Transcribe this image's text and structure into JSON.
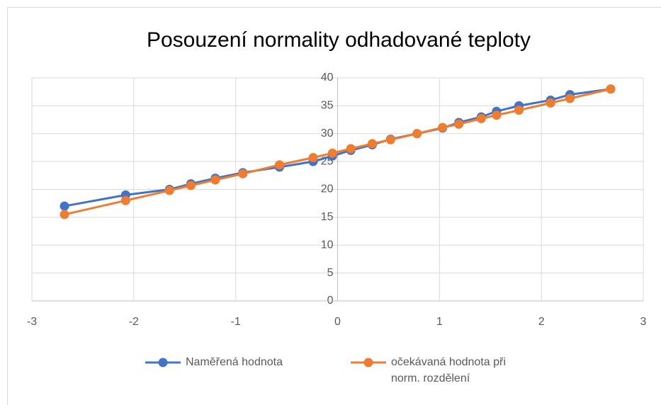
{
  "chart_data": {
    "type": "line",
    "title": "Posouzení normality odhadované teploty",
    "x": [
      -2.68,
      -2.08,
      -1.65,
      -1.44,
      -1.2,
      -0.93,
      -0.57,
      -0.24,
      -0.05,
      0.13,
      0.34,
      0.52,
      0.78,
      1.03,
      1.19,
      1.41,
      1.56,
      1.78,
      2.09,
      2.28,
      2.68
    ],
    "series": [
      {
        "name": "Naměřená hodnota",
        "color": "#4472c4",
        "values": [
          17,
          19,
          20,
          21,
          22,
          23,
          24,
          25,
          26,
          27,
          28,
          29,
          30,
          31,
          32,
          33,
          34,
          35,
          36,
          37,
          38
        ]
      },
      {
        "name": "očekávaná hodnota při norm. rozdělení",
        "color": "#ed7d31",
        "values": [
          15.5,
          18.0,
          19.8,
          20.7,
          21.7,
          22.8,
          24.4,
          25.7,
          26.5,
          27.3,
          28.2,
          28.9,
          30.0,
          31.1,
          31.7,
          32.7,
          33.3,
          34.2,
          35.5,
          36.3,
          38.0
        ]
      }
    ],
    "xlim": [
      -3,
      3
    ],
    "xticks": [
      -3,
      -2,
      -1,
      0,
      1,
      2,
      3
    ],
    "ylim": [
      0,
      40
    ],
    "yticks": [
      0,
      5,
      10,
      15,
      20,
      25,
      30,
      35,
      40
    ],
    "grid": true,
    "legend": "bottom"
  }
}
